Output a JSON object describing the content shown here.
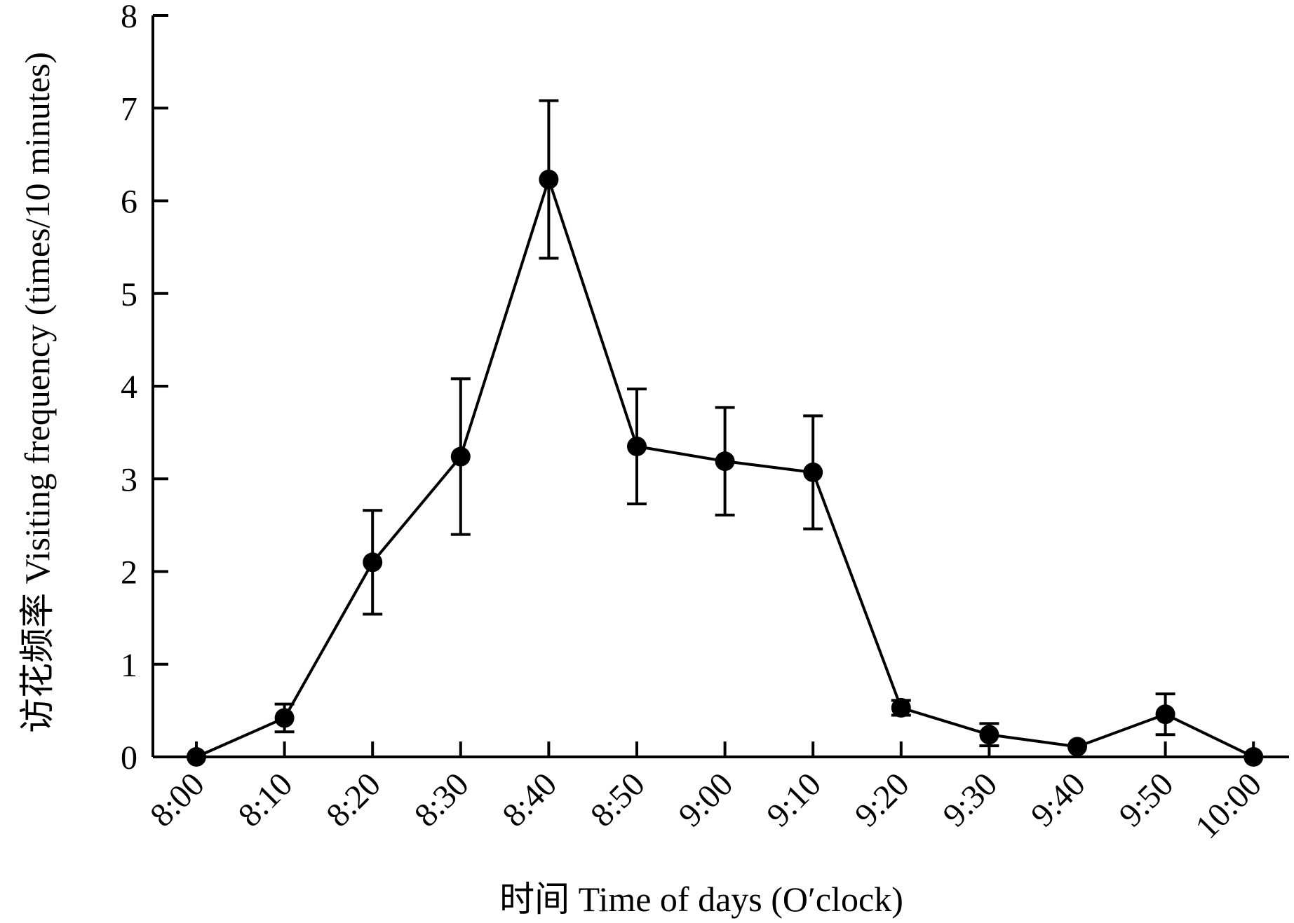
{
  "chart_data": {
    "type": "line",
    "title": "",
    "xlabel": "时间 Time of days (O′clock)",
    "ylabel": "访花频率 Visiting frequency (times/10 minutes)",
    "ylim": [
      0,
      8
    ],
    "yticks": [
      0,
      1,
      2,
      3,
      4,
      5,
      6,
      7,
      8
    ],
    "grid": false,
    "categories": [
      "8:00",
      "8:10",
      "8:20",
      "8:30",
      "8:40",
      "8:50",
      "9:00",
      "9:10",
      "9:20",
      "9:30",
      "9:40",
      "9:50",
      "10:00"
    ],
    "series": [
      {
        "name": "",
        "values": [
          0.0,
          0.42,
          2.1,
          3.24,
          6.23,
          3.35,
          3.19,
          3.07,
          0.53,
          0.24,
          0.11,
          0.46,
          0.0
        ],
        "error": [
          0.0,
          0.15,
          0.56,
          0.84,
          0.85,
          0.62,
          0.58,
          0.61,
          0.08,
          0.12,
          0.0,
          0.22,
          0.0
        ]
      }
    ]
  }
}
